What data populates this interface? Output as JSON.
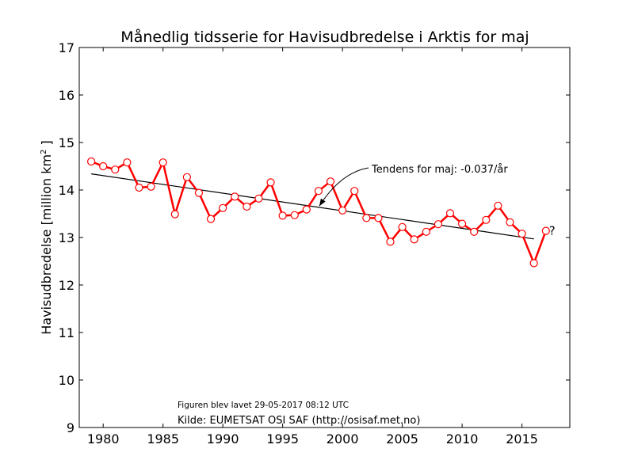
{
  "chart_data": {
    "type": "line",
    "title": "Månedlig tidsserie for Havisudbredelse i Arktis for maj",
    "xlabel": "",
    "ylabel_main": "Havisudbredelse [million km",
    "ylabel_sup": "2",
    "ylabel_end": " ]",
    "xlim": [
      1978,
      2019
    ],
    "ylim": [
      9,
      17
    ],
    "x_ticks": [
      1980,
      1985,
      1990,
      1995,
      2000,
      2005,
      2010,
      2015
    ],
    "y_ticks": [
      9,
      10,
      11,
      12,
      13,
      14,
      15,
      16,
      17
    ],
    "grid": false,
    "series": [
      {
        "color": "#ff0000",
        "marker": "circle-open",
        "x": [
          1979,
          1980,
          1981,
          1982,
          1983,
          1984,
          1985,
          1986,
          1987,
          1988,
          1989,
          1990,
          1991,
          1992,
          1993,
          1994,
          1995,
          1996,
          1997,
          1998,
          1999,
          2000,
          2001,
          2002,
          2003,
          2004,
          2005,
          2006,
          2007,
          2008,
          2009,
          2010,
          2011,
          2012,
          2013,
          2014,
          2015,
          2016,
          2017
        ],
        "values": [
          14.6,
          14.5,
          14.43,
          14.58,
          14.05,
          14.07,
          14.58,
          13.49,
          14.27,
          13.94,
          13.39,
          13.62,
          13.86,
          13.65,
          13.82,
          14.16,
          13.46,
          13.47,
          13.59,
          13.98,
          14.18,
          13.57,
          13.98,
          13.41,
          13.41,
          12.91,
          13.22,
          12.96,
          13.12,
          13.28,
          13.51,
          13.29,
          13.12,
          13.37,
          13.67,
          13.32,
          13.08,
          12.46,
          13.14
        ]
      }
    ],
    "trend": {
      "color": "#000000",
      "x": [
        1979,
        2016
      ],
      "values": [
        14.34,
        12.97
      ]
    },
    "annotation": {
      "text": "Tendens for maj: -0.037/år",
      "point_x": 1998,
      "point_y": 13.68
    },
    "last_point_note": "?",
    "footer_created": "Figuren blev lavet 29-05-2017 08:12 UTC",
    "footer_source": "Kilde: EUMETSAT OSI SAF (http://osisaf.met.no)"
  }
}
